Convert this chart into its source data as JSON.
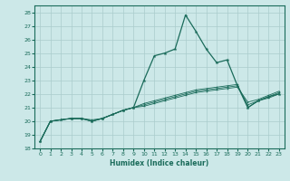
{
  "title": "",
  "xlabel": "Humidex (Indice chaleur)",
  "bg_color": "#cce8e8",
  "grid_color": "#aacccc",
  "line_color": "#1a6b5a",
  "xlim": [
    -0.5,
    23.5
  ],
  "ylim": [
    18,
    28.5
  ],
  "yticks": [
    18,
    19,
    20,
    21,
    22,
    23,
    24,
    25,
    26,
    27,
    28
  ],
  "xticks": [
    0,
    1,
    2,
    3,
    4,
    5,
    6,
    7,
    8,
    9,
    10,
    11,
    12,
    13,
    14,
    15,
    16,
    17,
    18,
    19,
    20,
    21,
    22,
    23
  ],
  "series": [
    [
      18.5,
      20.0,
      20.1,
      20.2,
      20.2,
      20.0,
      20.2,
      20.5,
      20.8,
      21.0,
      23.0,
      24.8,
      25.0,
      25.3,
      27.8,
      26.6,
      25.3,
      24.3,
      24.5,
      22.6,
      21.0,
      21.5,
      21.8,
      22.0
    ],
    [
      18.5,
      20.0,
      20.1,
      20.2,
      20.2,
      20.1,
      20.2,
      20.5,
      20.8,
      21.0,
      21.3,
      21.5,
      21.7,
      21.9,
      22.1,
      22.3,
      22.4,
      22.5,
      22.6,
      22.7,
      21.0,
      21.5,
      21.7,
      22.0
    ],
    [
      18.5,
      20.0,
      20.1,
      20.2,
      20.2,
      20.0,
      20.2,
      20.5,
      20.8,
      21.0,
      21.2,
      21.4,
      21.6,
      21.8,
      22.0,
      22.2,
      22.3,
      22.4,
      22.5,
      22.6,
      21.2,
      21.5,
      21.8,
      22.1
    ],
    [
      18.5,
      20.0,
      20.1,
      20.2,
      20.2,
      20.0,
      20.2,
      20.5,
      20.8,
      21.0,
      21.1,
      21.3,
      21.5,
      21.7,
      21.9,
      22.1,
      22.2,
      22.3,
      22.4,
      22.5,
      21.4,
      21.6,
      21.9,
      22.2
    ]
  ]
}
